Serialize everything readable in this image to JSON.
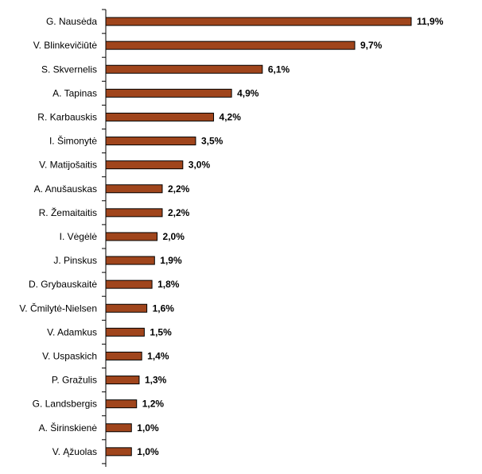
{
  "chart_data": {
    "type": "bar",
    "orientation": "horizontal",
    "categories": [
      "G. Nausėda",
      "V. Blinkevičiūtė",
      "S. Skvernelis",
      "A. Tapinas",
      "R. Karbauskis",
      "I. Šimonytė",
      "V. Matijošaitis",
      "A. Anušauskas",
      "R. Žemaitaitis",
      "I. Vėgėlė",
      "J. Pinskus",
      "D. Grybauskaitė",
      "V. Čmilytė-Nielsen",
      "V. Adamkus",
      "V. Uspaskich",
      "P. Gražulis",
      "G. Landsbergis",
      "A. Širinskienė",
      "V. Ąžuolas"
    ],
    "values": [
      11.9,
      9.7,
      6.1,
      4.9,
      4.2,
      3.5,
      3.0,
      2.2,
      2.2,
      2.0,
      1.9,
      1.8,
      1.6,
      1.5,
      1.4,
      1.3,
      1.2,
      1.0,
      1.0
    ],
    "value_labels": [
      "11,9%",
      "9,7%",
      "6,1%",
      "4,9%",
      "4,2%",
      "3,5%",
      "3,0%",
      "2,2%",
      "2,2%",
      "2,0%",
      "1,9%",
      "1,8%",
      "1,6%",
      "1,5%",
      "1,4%",
      "1,3%",
      "1,2%",
      "1,0%",
      "1,0%"
    ],
    "title": "",
    "xlabel": "",
    "ylabel": "",
    "xlim": [
      0,
      12
    ],
    "grid": false,
    "bar_color": "#a0451c",
    "bar_outline_color": "#000000"
  }
}
